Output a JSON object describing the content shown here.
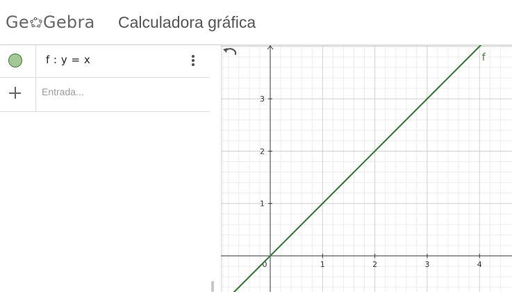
{
  "header": {
    "logo_text": "GeoGebra",
    "app_title": "Calculadora gráfica"
  },
  "algebra": {
    "items": [
      {
        "formula": "f : y = x",
        "color": "#3c7a3c"
      }
    ],
    "input": {
      "placeholder": "Entrada..."
    },
    "icons": {
      "marble": "visibility-marble-icon",
      "more": "more-vertical-icon",
      "add": "plus-icon"
    }
  },
  "graphics": {
    "undo_icon": "undo-icon",
    "function_label": "f",
    "line_color": "#3c7a3c",
    "x_ticks": [
      "0",
      "1",
      "2",
      "3",
      "4"
    ],
    "y_ticks": [
      "1",
      "2",
      "3"
    ],
    "function": {
      "expression": "y = x",
      "slope": 1,
      "intercept": 0
    },
    "axes": {
      "x_range": [
        -0.9,
        4.55
      ],
      "y_range": [
        -0.7,
        4.0
      ]
    }
  }
}
